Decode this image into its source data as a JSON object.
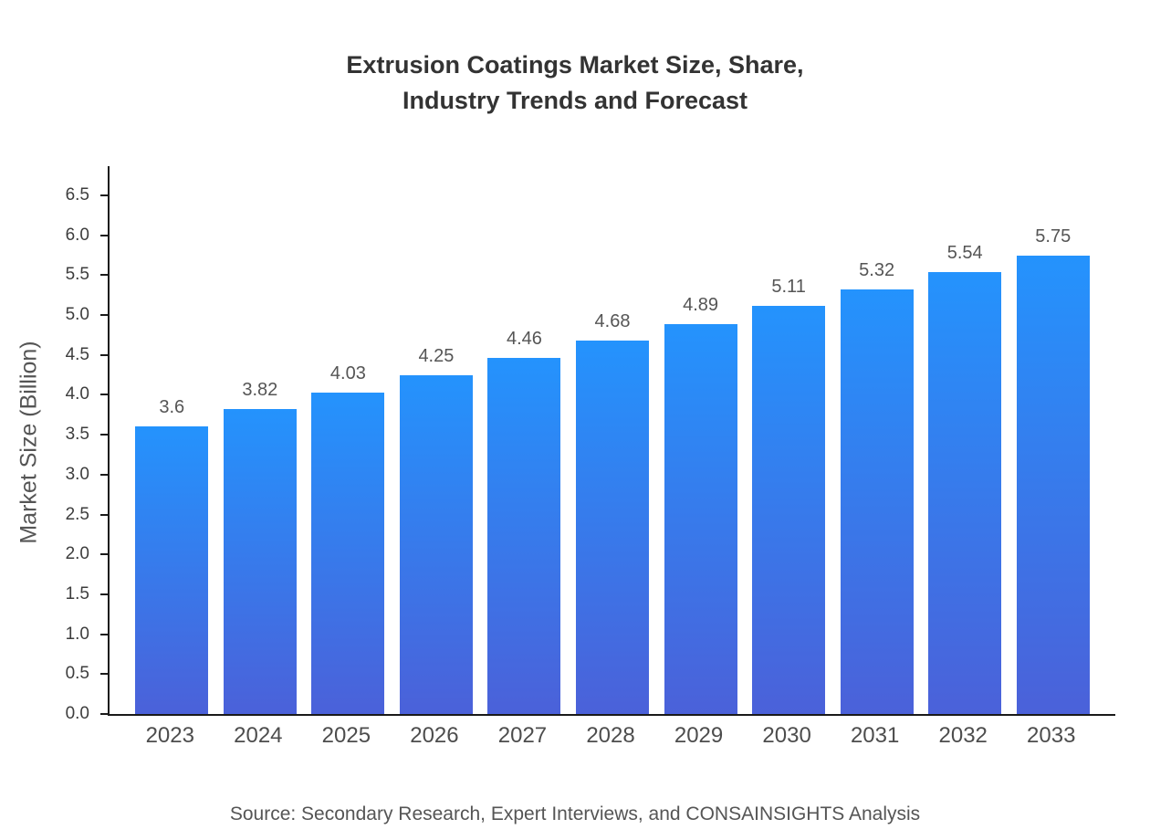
{
  "chart_data": {
    "type": "bar",
    "title": "Extrusion Coatings Market Size, Share,\nIndustry Trends and Forecast",
    "xlabel": "",
    "ylabel": "Market Size (Billion)",
    "categories": [
      "2023",
      "2024",
      "2025",
      "2026",
      "2027",
      "2028",
      "2029",
      "2030",
      "2031",
      "2032",
      "2033"
    ],
    "values": [
      3.6,
      3.82,
      4.03,
      4.25,
      4.46,
      4.68,
      4.89,
      5.11,
      5.32,
      5.54,
      5.75
    ],
    "value_labels": [
      "3.6",
      "3.82",
      "4.03",
      "4.25",
      "4.46",
      "4.68",
      "4.89",
      "5.11",
      "5.32",
      "5.54",
      "5.75"
    ],
    "yticks": [
      "0.0",
      "0.5",
      "1.0",
      "1.5",
      "2.0",
      "2.5",
      "3.0",
      "3.5",
      "4.0",
      "4.5",
      "5.0",
      "5.5",
      "6.0",
      "6.5"
    ],
    "ylim": [
      0,
      6.5
    ],
    "grid": false,
    "legend_position": "none",
    "bar_gradient": {
      "top": "#2493fd",
      "bottom": "#4b61d9"
    },
    "axis_color": "#1a1a1a",
    "source": "Source: Secondary Research, Expert Interviews, and CONSAINSIGHTS Analysis"
  }
}
